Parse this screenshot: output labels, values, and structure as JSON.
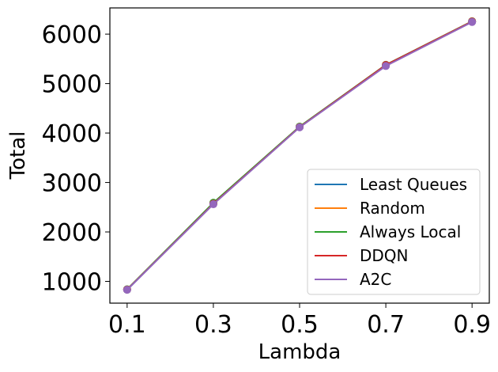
{
  "chart_data": {
    "type": "line",
    "title": "",
    "xlabel": "Lambda",
    "ylabel": "Total",
    "x": [
      0.1,
      0.3,
      0.5,
      0.7,
      0.9
    ],
    "x_tick_labels": [
      "0.1",
      "0.3",
      "0.5",
      "0.7",
      "0.9"
    ],
    "y_ticks": [
      1000,
      2000,
      3000,
      4000,
      5000,
      6000
    ],
    "y_tick_labels": [
      "1000",
      "2000",
      "3000",
      "4000",
      "5000",
      "6000"
    ],
    "xlim": [
      0.06,
      0.94
    ],
    "ylim": [
      560,
      6530
    ],
    "grid": false,
    "legend_position": "lower-right",
    "series": [
      {
        "name": "Least Queues",
        "color": "#1f77b4",
        "values": [
          830,
          2570,
          4120,
          5370,
          6250
        ]
      },
      {
        "name": "Random",
        "color": "#ff7f0e",
        "values": [
          835,
          2575,
          4125,
          5375,
          6255
        ]
      },
      {
        "name": "Always Local",
        "color": "#2ca02c",
        "values": [
          840,
          2590,
          4130,
          5380,
          6260
        ]
      },
      {
        "name": "DDQN",
        "color": "#d62728",
        "values": [
          835,
          2570,
          4120,
          5375,
          6255
        ]
      },
      {
        "name": "A2C",
        "color": "#9467bd",
        "values": [
          830,
          2560,
          4115,
          5355,
          6245
        ]
      }
    ]
  }
}
